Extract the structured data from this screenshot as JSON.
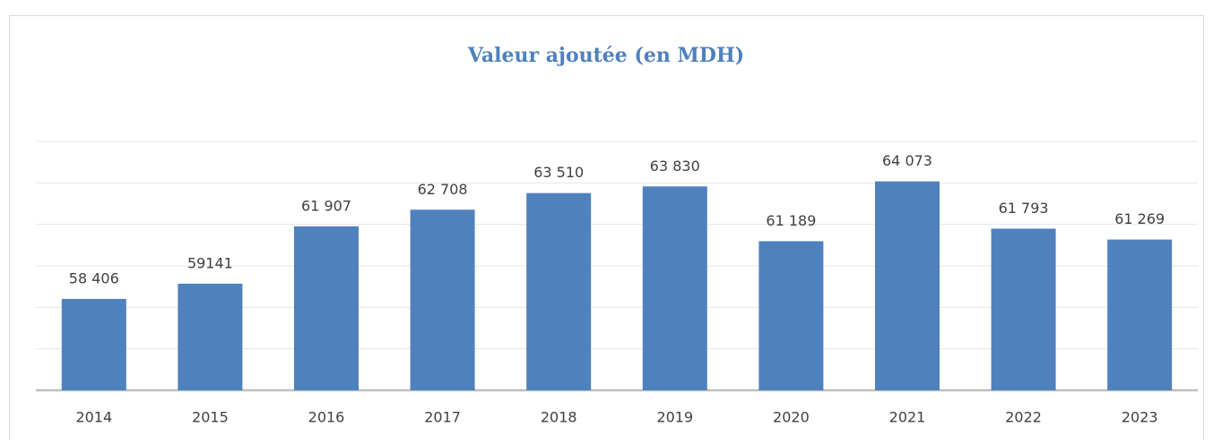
{
  "chart_data": {
    "type": "bar",
    "title": "Valeur ajoutée (en MDH)",
    "categories": [
      "2014",
      "2015",
      "2016",
      "2017",
      "2018",
      "2019",
      "2020",
      "2021",
      "2022",
      "2023"
    ],
    "values": [
      58406,
      59141,
      61907,
      62708,
      63510,
      63830,
      61189,
      64073,
      61793,
      61269
    ],
    "value_labels": [
      "58 406",
      "59141",
      "61 907",
      "62 708",
      "63 510",
      "63 830",
      "61 189",
      "64 073",
      "61 793",
      "61 269"
    ],
    "color": "#4f81bd",
    "ylim": [
      54000,
      66000
    ],
    "yticks": [
      54000,
      56000,
      58000,
      60000,
      62000,
      64000,
      66000
    ],
    "grid": true
  }
}
